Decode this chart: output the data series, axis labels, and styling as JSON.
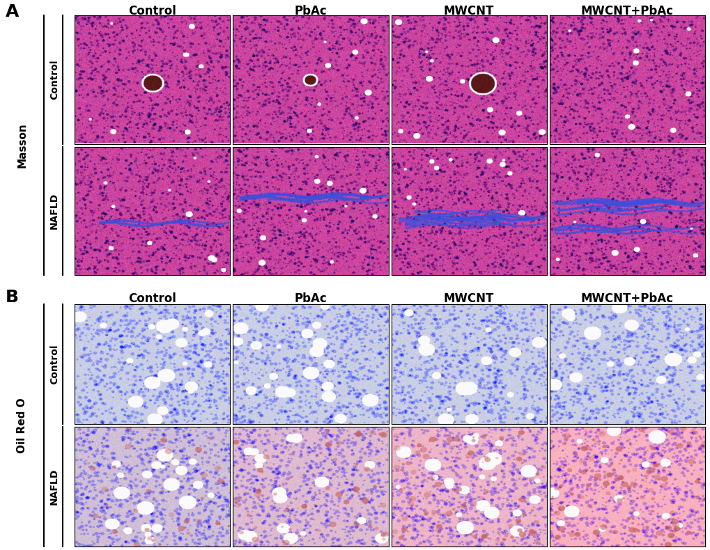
{
  "panel_A_label": "A",
  "panel_B_label": "B",
  "col_labels": [
    "Control",
    "PbAc",
    "MWCNT",
    "MWCNT+PbAc"
  ],
  "row_labels_A": [
    "Control",
    "NAFLD"
  ],
  "row_labels_B": [
    "Control",
    "NAFLD"
  ],
  "stain_A_label": "Masson",
  "stain_B_label": "Oil Red O",
  "background_color": "#ffffff",
  "col_label_fontsize": 12,
  "row_label_fontsize": 10,
  "panel_label_fontsize": 18,
  "stain_label_fontsize": 11
}
